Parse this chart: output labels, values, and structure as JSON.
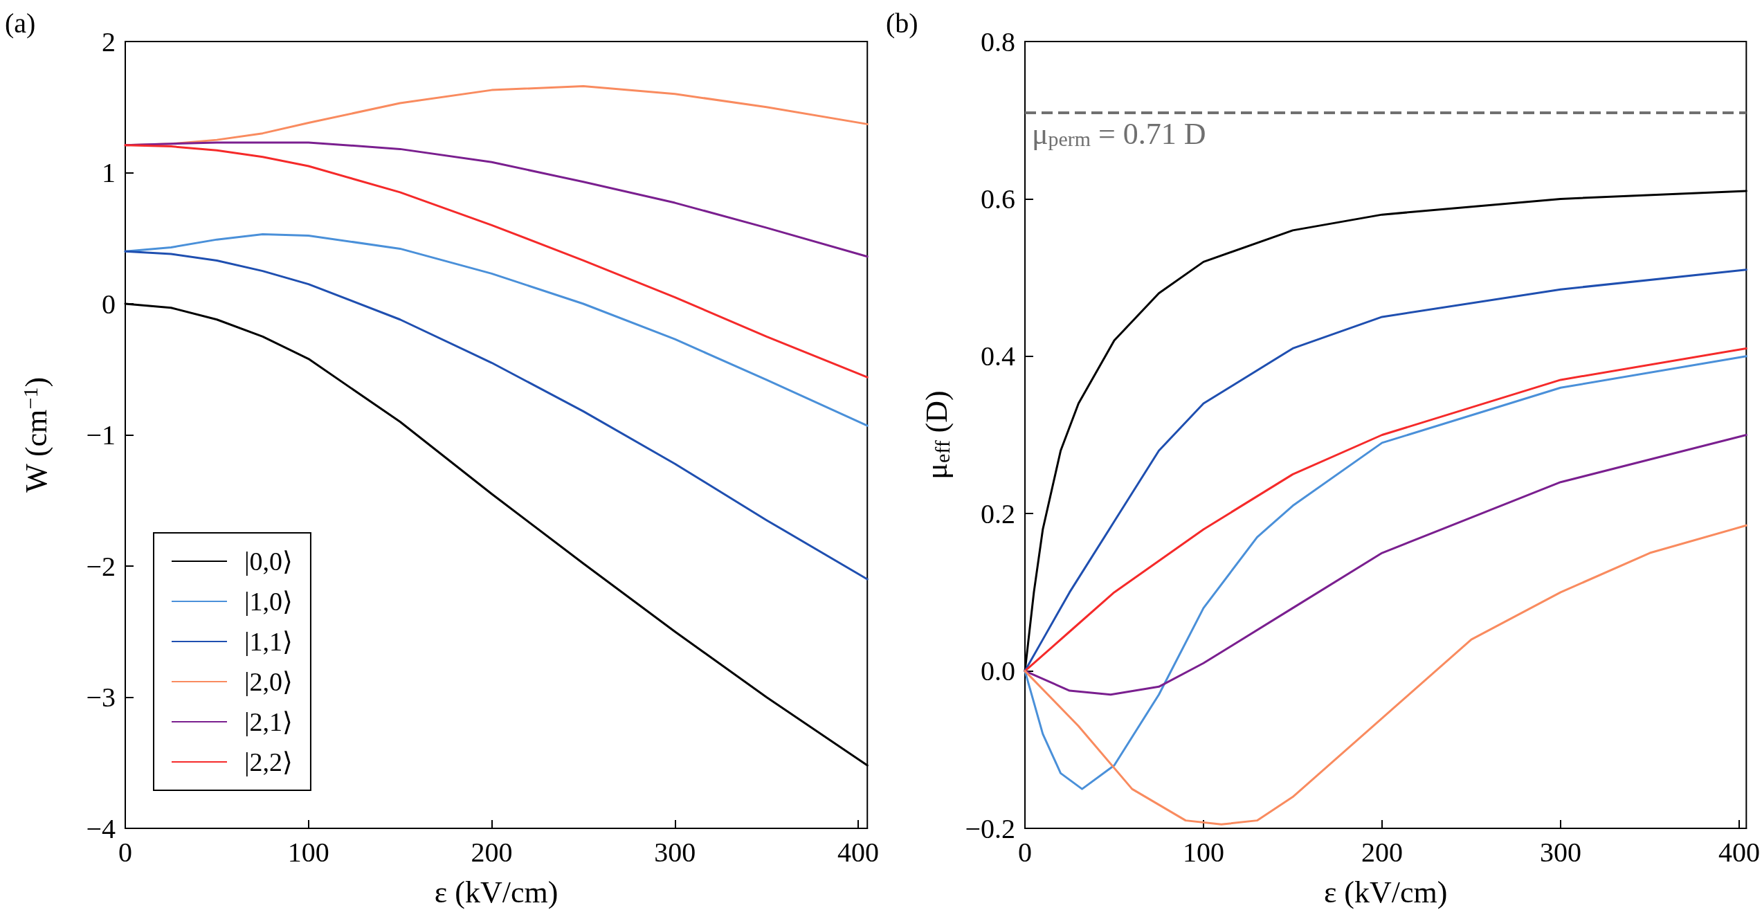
{
  "chart_data": [
    {
      "type": "line",
      "title": "(a)",
      "xlabel": "ε (kV/cm)",
      "ylabel": "W (cm$^{−1}$)",
      "x": [
        0,
        25,
        50,
        75,
        100,
        150,
        200,
        250,
        300,
        350,
        405
      ],
      "series": [
        {
          "name": "|0,0⟩",
          "color": "#000000",
          "values": [
            0,
            -0.03,
            -0.12,
            -0.25,
            -0.42,
            -0.9,
            -1.45,
            -1.98,
            -2.5,
            -3.0,
            -3.52
          ]
        },
        {
          "name": "|1,0⟩",
          "color": "#4a90d9",
          "values": [
            0.4,
            0.43,
            0.49,
            0.53,
            0.52,
            0.42,
            0.23,
            0.0,
            -0.27,
            -0.58,
            -0.93
          ]
        },
        {
          "name": "|1,1⟩",
          "color": "#1f4fb0",
          "values": [
            0.4,
            0.38,
            0.33,
            0.25,
            0.15,
            -0.12,
            -0.45,
            -0.82,
            -1.22,
            -1.65,
            -2.1
          ]
        },
        {
          "name": "|2,0⟩",
          "color": "#f98b5f",
          "values": [
            1.21,
            1.22,
            1.25,
            1.3,
            1.38,
            1.53,
            1.63,
            1.66,
            1.6,
            1.5,
            1.37
          ]
        },
        {
          "name": "|2,1⟩",
          "color": "#7a1f8f",
          "values": [
            1.21,
            1.22,
            1.23,
            1.23,
            1.23,
            1.18,
            1.08,
            0.93,
            0.77,
            0.58,
            0.36
          ]
        },
        {
          "name": "|2,2⟩",
          "color": "#f52a2a",
          "values": [
            1.21,
            1.2,
            1.17,
            1.12,
            1.05,
            0.85,
            0.6,
            0.33,
            0.05,
            -0.25,
            -0.56
          ]
        }
      ],
      "xlim": [
        0,
        405
      ],
      "xticks": [
        0,
        100,
        200,
        300,
        400
      ],
      "ylim": [
        -4,
        2
      ],
      "yticks": [
        {
          "value": -4,
          "label": "−4"
        },
        {
          "value": -3,
          "label": "−3"
        },
        {
          "value": -2,
          "label": "−2"
        },
        {
          "value": -1,
          "label": "−1"
        },
        0,
        1,
        2
      ],
      "legend": "bottom left",
      "grid": false
    },
    {
      "type": "line",
      "title": "(b)",
      "xlabel": "ε (kV/cm)",
      "ylabel": "μ$_{eff}$ (D)",
      "series": [
        {
          "color": "#000000",
          "x": [
            0,
            5,
            10,
            20,
            30,
            50,
            75,
            100,
            150,
            200,
            300,
            404
          ],
          "values": [
            0,
            0.1,
            0.18,
            0.28,
            0.34,
            0.42,
            0.48,
            0.52,
            0.56,
            0.58,
            0.6,
            0.61
          ]
        },
        {
          "color": "#1f4fb0",
          "x": [
            0,
            10,
            25,
            50,
            75,
            100,
            150,
            200,
            300,
            404
          ],
          "values": [
            0,
            0.04,
            0.1,
            0.19,
            0.28,
            0.34,
            0.41,
            0.45,
            0.485,
            0.51
          ]
        },
        {
          "color": "#f52a2a",
          "x": [
            0,
            25,
            50,
            100,
            150,
            200,
            300,
            404
          ],
          "values": [
            0,
            0.05,
            0.1,
            0.18,
            0.25,
            0.3,
            0.37,
            0.41
          ]
        },
        {
          "color": "#4a90d9",
          "x": [
            0,
            10,
            20,
            32,
            50,
            75,
            100,
            130,
            150,
            200,
            300,
            404
          ],
          "values": [
            0,
            -0.08,
            -0.13,
            -0.15,
            -0.12,
            -0.03,
            0.08,
            0.17,
            0.21,
            0.29,
            0.36,
            0.4
          ]
        },
        {
          "color": "#7a1f8f",
          "x": [
            0,
            25,
            48,
            75,
            100,
            150,
            200,
            300,
            404
          ],
          "values": [
            0,
            -0.025,
            -0.03,
            -0.02,
            0.01,
            0.08,
            0.15,
            0.24,
            0.3
          ]
        },
        {
          "color": "#f98b5f",
          "x": [
            0,
            30,
            60,
            90,
            110,
            130,
            150,
            200,
            250,
            300,
            350,
            404
          ],
          "values": [
            0,
            -0.07,
            -0.15,
            -0.19,
            -0.195,
            -0.19,
            -0.16,
            -0.06,
            0.04,
            0.1,
            0.15,
            0.185
          ]
        }
      ],
      "xlim": [
        0,
        404
      ],
      "xticks": [
        0,
        100,
        200,
        300,
        400
      ],
      "ylim": [
        -0.2,
        0.8
      ],
      "yticks": [
        {
          "value": -0.2,
          "label": "−0.2"
        },
        {
          "value": 0,
          "label": "0.0"
        },
        {
          "value": 0.2,
          "label": "0.2"
        },
        {
          "value": 0.4,
          "label": "0.4"
        },
        {
          "value": 0.6,
          "label": "0.6"
        },
        {
          "value": 0.8,
          "label": "0.8"
        }
      ],
      "ref_lines": [
        {
          "axis": "y",
          "value": 0.707,
          "label": "μ$_{perm}$ = 0.71 D",
          "color": "#707070",
          "line_style": "dashed"
        }
      ],
      "legend": false,
      "grid": false
    }
  ]
}
